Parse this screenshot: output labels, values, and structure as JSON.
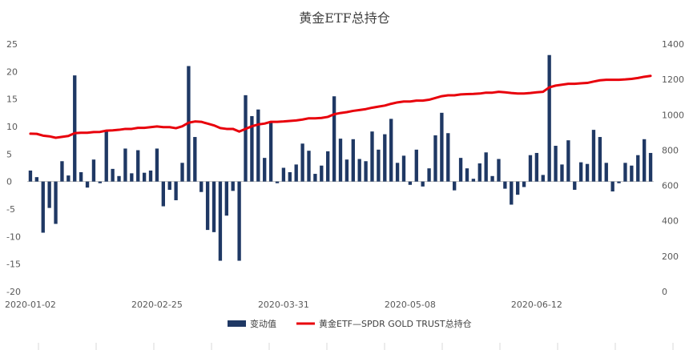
{
  "chart_data": {
    "type": "bar+line",
    "title": "黄金ETF总持仓",
    "left_axis": {
      "ylim": [
        -20,
        25
      ],
      "ticks": [
        "-20",
        "-15",
        "-10",
        "-5",
        "0",
        "5",
        "10",
        "15",
        "20",
        "25"
      ]
    },
    "right_axis": {
      "ylim": [
        0,
        1400
      ],
      "ticks": [
        "0",
        "200",
        "400",
        "600",
        "800",
        "1000",
        "1200",
        "1400"
      ]
    },
    "x_tick_labels": [
      "2020-01-02",
      "2020-02-25",
      "2020-03-31",
      "2020-05-08",
      "2020-06-12"
    ],
    "x_tick_indices": [
      0,
      20,
      40,
      60,
      80
    ],
    "grid": false,
    "legend_position": "bottom",
    "colors": {
      "bars": "#1f3864",
      "line": "#e8000b"
    },
    "series": [
      {
        "name": "变动值",
        "type": "bar",
        "axis": "left",
        "values": [
          2.0,
          0.8,
          -9.3,
          -4.8,
          -7.7,
          3.7,
          1.1,
          19.3,
          1.7,
          -1.1,
          4.0,
          -0.3,
          9.3,
          2.3,
          1.0,
          6.0,
          1.5,
          5.7,
          1.6,
          2.0,
          6.0,
          -4.5,
          -1.5,
          -3.4,
          3.4,
          21.0,
          8.1,
          -1.9,
          -8.8,
          -9.2,
          -14.4,
          -6.2,
          -1.7,
          -14.4,
          15.7,
          11.9,
          13.1,
          4.3,
          10.9,
          -0.3,
          2.5,
          1.7,
          3.1,
          6.9,
          5.6,
          1.4,
          2.9,
          5.5,
          15.5,
          7.8,
          4.0,
          7.7,
          4.1,
          3.7,
          9.1,
          5.8,
          8.6,
          11.4,
          3.4,
          4.7,
          -0.6,
          5.8,
          -0.9,
          2.4,
          8.4,
          12.5,
          8.8,
          -1.6,
          4.3,
          2.4,
          0.5,
          3.3,
          5.3,
          1.0,
          4.1,
          -1.3,
          -4.2,
          -2.4,
          -1.0,
          4.8,
          5.2,
          1.2,
          23.0,
          6.5,
          3.1,
          7.5,
          -1.5,
          3.5,
          3.2,
          9.4,
          8.1,
          3.4,
          -1.8,
          -0.3,
          3.4,
          2.9,
          4.8,
          7.7,
          5.2
        ]
      },
      {
        "name": "黄金ETF—SPDR GOLD TRUST总持仓",
        "type": "line",
        "axis": "right",
        "values": [
          893,
          892,
          882,
          878,
          870,
          875,
          880,
          896,
          898,
          898,
          902,
          903,
          910,
          912,
          915,
          920,
          920,
          926,
          926,
          930,
          934,
          930,
          930,
          924,
          935,
          955,
          962,
          960,
          950,
          940,
          925,
          920,
          920,
          905,
          920,
          935,
          945,
          950,
          960,
          960,
          962,
          965,
          968,
          973,
          980,
          980,
          982,
          988,
          1003,
          1010,
          1015,
          1022,
          1027,
          1032,
          1040,
          1046,
          1052,
          1062,
          1070,
          1075,
          1075,
          1080,
          1080,
          1085,
          1095,
          1105,
          1110,
          1110,
          1115,
          1117,
          1118,
          1120,
          1125,
          1125,
          1130,
          1127,
          1123,
          1120,
          1120,
          1123,
          1127,
          1130,
          1155,
          1165,
          1170,
          1175,
          1175,
          1178,
          1180,
          1188,
          1195,
          1198,
          1198,
          1198,
          1200,
          1203,
          1208,
          1215,
          1220
        ]
      }
    ]
  }
}
